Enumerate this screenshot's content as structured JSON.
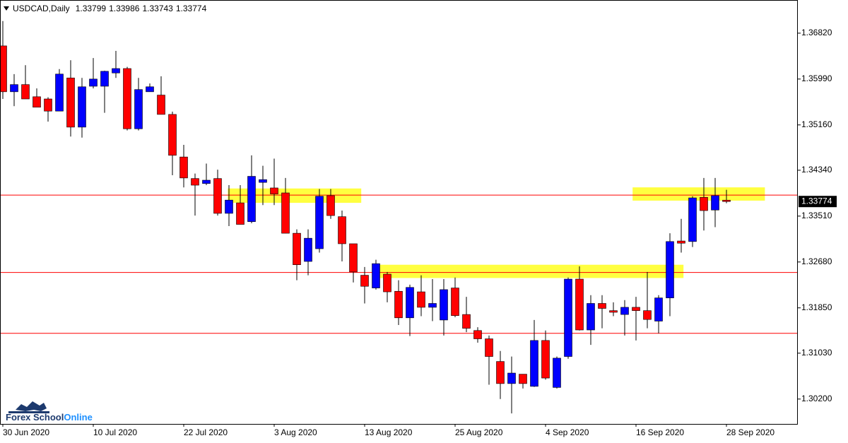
{
  "chart_data": {
    "type": "candlestick",
    "title": "USDCAD,Daily",
    "categories": [
      "30 Jun 2020",
      null,
      null,
      null,
      null,
      null,
      null,
      null,
      "10 Jul 2020",
      null,
      null,
      null,
      null,
      null,
      null,
      null,
      "22 Jul 2020",
      null,
      null,
      null,
      null,
      null,
      null,
      null,
      "3 Aug 2020",
      null,
      null,
      null,
      null,
      null,
      null,
      null,
      "13 Aug 2020",
      null,
      null,
      null,
      null,
      null,
      null,
      null,
      "25 Aug 2020",
      null,
      null,
      null,
      null,
      null,
      null,
      null,
      "4 Sep 2020",
      null,
      null,
      null,
      null,
      null,
      null,
      null,
      "16 Sep 2020",
      null,
      null,
      null,
      null,
      null,
      null,
      null,
      "28 Sep 2020"
    ],
    "open": [
      1.3659,
      1.3576,
      1.3589,
      1.3567,
      1.3563,
      1.3541,
      1.3601,
      1.3512,
      1.3586,
      1.3586,
      1.361,
      1.3618,
      1.3509,
      1.3576,
      1.357,
      1.3535,
      1.3458,
      1.3419,
      1.341,
      1.3419,
      1.3356,
      1.3375,
      1.3341,
      1.3412,
      1.3402,
      1.3393,
      1.332,
      1.3269,
      1.3292,
      1.3388,
      1.335,
      1.3301,
      1.3244,
      1.3221,
      1.3246,
      1.3215,
      1.3167,
      1.3214,
      1.3186,
      1.3163,
      1.3221,
      1.3173,
      1.3144,
      1.3129,
      1.3088,
      1.3048,
      1.3065,
      1.3043,
      1.3126,
      1.3041,
      1.3097,
      1.3237,
      1.3145,
      1.3193,
      1.318,
      1.3173,
      1.3186,
      1.318,
      1.3161,
      1.3203,
      1.3306,
      1.3305,
      1.3385,
      1.3362,
      1.33799
    ],
    "high": [
      1.3704,
      1.3608,
      1.3624,
      1.3582,
      1.3566,
      1.3617,
      1.3633,
      1.3601,
      1.3637,
      1.3614,
      1.365,
      1.3621,
      1.3601,
      1.3591,
      1.3604,
      1.354,
      1.348,
      1.3428,
      1.3446,
      1.3435,
      1.3407,
      1.3407,
      1.3461,
      1.3442,
      1.3455,
      1.342,
      1.3327,
      1.3327,
      1.34,
      1.34,
      1.3361,
      1.3301,
      1.3259,
      1.3272,
      1.325,
      1.3235,
      1.3227,
      1.3244,
      1.3237,
      1.3237,
      1.324,
      1.3205,
      1.315,
      1.3135,
      1.3107,
      1.3097,
      1.3065,
      1.3163,
      1.3144,
      1.3097,
      1.324,
      1.326,
      1.3208,
      1.3208,
      1.3195,
      1.3199,
      1.3205,
      1.325,
      1.3208,
      1.332,
      1.3346,
      1.3387,
      1.342,
      1.342,
      1.33986
    ],
    "low": [
      1.3563,
      1.355,
      1.3563,
      1.3548,
      1.3522,
      1.3541,
      1.3495,
      1.3493,
      1.3582,
      1.3538,
      1.3601,
      1.3506,
      1.3506,
      1.3576,
      1.3535,
      1.3425,
      1.3403,
      1.3352,
      1.3407,
      1.3352,
      1.3333,
      1.3336,
      1.3338,
      1.3371,
      1.3371,
      1.332,
      1.3235,
      1.3244,
      1.3285,
      1.3346,
      1.3269,
      1.3231,
      1.3193,
      1.3218,
      1.3195,
      1.3154,
      1.3134,
      1.317,
      1.3161,
      1.3135,
      1.3168,
      1.3141,
      1.3122,
      1.3046,
      1.302,
      1.2994,
      1.3039,
      1.3042,
      1.3055,
      1.3039,
      1.3093,
      1.3144,
      1.3118,
      1.3148,
      1.317,
      1.3135,
      1.3126,
      1.3148,
      1.3139,
      1.317,
      1.3285,
      1.3295,
      1.3325,
      1.3331,
      1.33743
    ],
    "close": [
      1.3576,
      1.3589,
      1.3563,
      1.3548,
      1.3541,
      1.3608,
      1.3512,
      1.3585,
      1.3599,
      1.3613,
      1.3618,
      1.3509,
      1.358,
      1.3585,
      1.3535,
      1.3461,
      1.342,
      1.3407,
      1.3416,
      1.3356,
      1.338,
      1.3336,
      1.3423,
      1.3417,
      1.3391,
      1.332,
      1.3263,
      1.3311,
      1.3387,
      1.3352,
      1.3301,
      1.325,
      1.3224,
      1.3265,
      1.3214,
      1.3167,
      1.3222,
      1.3186,
      1.3193,
      1.3218,
      1.3171,
      1.3148,
      1.3129,
      1.3097,
      1.3048,
      1.3067,
      1.3048,
      1.3126,
      1.3058,
      1.3094,
      1.3237,
      1.3145,
      1.3193,
      1.3184,
      1.3177,
      1.3186,
      1.318,
      1.3164,
      1.3203,
      1.3305,
      1.3302,
      1.3384,
      1.3361,
      1.3388,
      1.33774
    ],
    "up_color": "#0000ff",
    "down_color": "#ff0000",
    "ylim": [
      1.2975,
      1.3742
    ],
    "yticks": [
      {
        "value": 1.3682,
        "label": "1.36820"
      },
      {
        "value": 1.3599,
        "label": "1.35990"
      },
      {
        "value": 1.3516,
        "label": "1.35160"
      },
      {
        "value": 1.3434,
        "label": "1.34340"
      },
      {
        "value": 1.3351,
        "label": "1.33510"
      },
      {
        "value": 1.3268,
        "label": "1.32680"
      },
      {
        "value": 1.3185,
        "label": "1.31850"
      },
      {
        "value": 1.3103,
        "label": "1.31030"
      },
      {
        "value": 1.302,
        "label": "1.30200"
      }
    ],
    "levels": [
      1.3389,
      1.3249,
      1.3139
    ],
    "level_color": "#ff0000",
    "zones": [
      {
        "x": [
          19.9,
          31.7
        ],
        "y": [
          1.3375,
          1.3401
        ]
      },
      {
        "x": [
          32.9,
          60.2
        ],
        "y": [
          1.3239,
          1.3263
        ]
      },
      {
        "x": [
          55.7,
          67.4
        ],
        "y": [
          1.3379,
          1.3403
        ]
      }
    ],
    "zone_color": "#ffff00",
    "watermark": [
      "Forex School",
      "Online"
    ]
  }
}
